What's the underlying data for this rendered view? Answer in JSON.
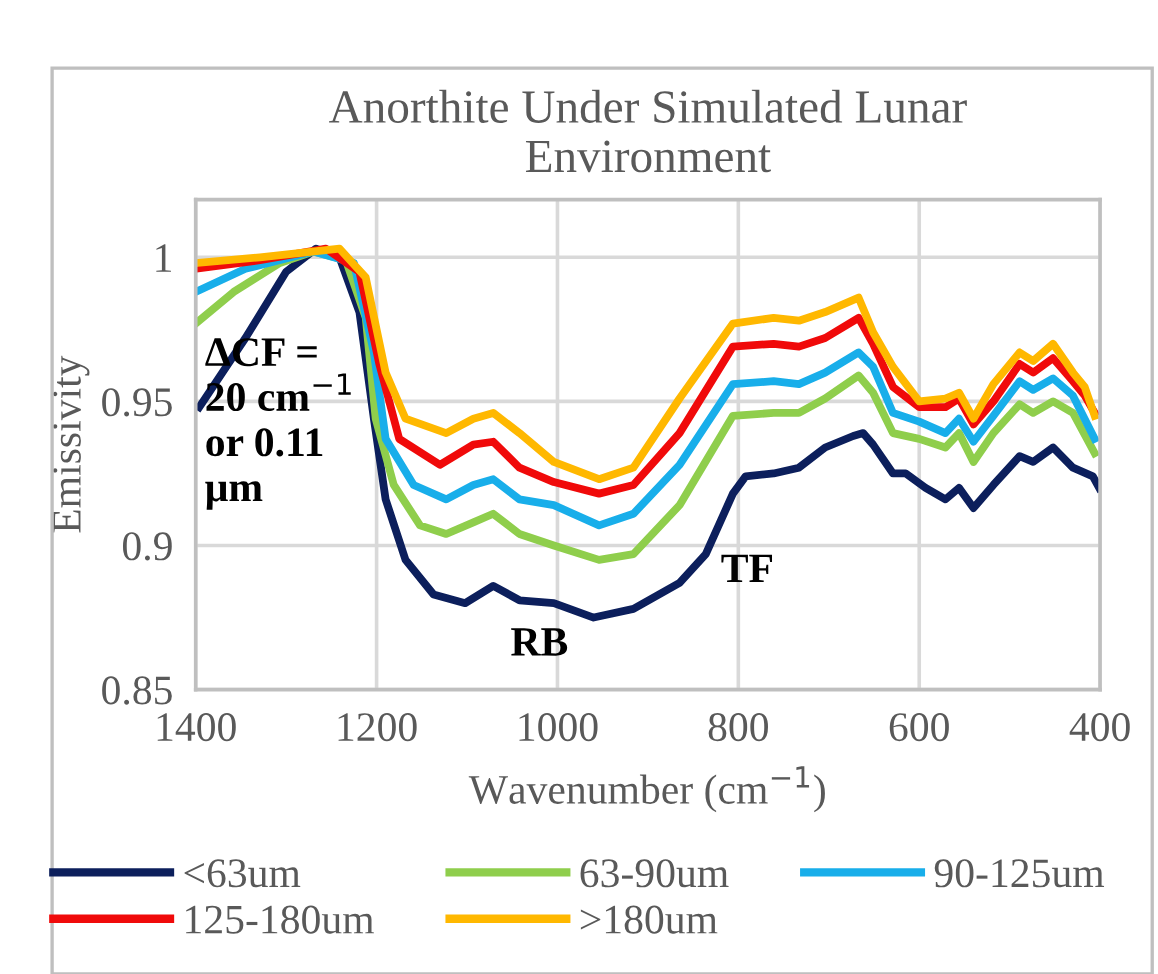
{
  "chart_data": {
    "type": "line",
    "title": "Anorthite Under Simulated Lunar\nEnvironment",
    "xlabel": "Wavenumber (cm$^{−1}$)",
    "ylabel": "Emissivity",
    "xlim": [
      1400,
      400
    ],
    "xticks": [
      1400,
      1200,
      1000,
      800,
      600,
      400
    ],
    "ylim": [
      0.85,
      1.02
    ],
    "yticks": [
      0.85,
      0.9,
      0.95,
      1
    ],
    "grid": true,
    "legend": "bottom",
    "marker": "none",
    "line_style": "solid",
    "annotations": [
      "ΔCF = 20 cm$^{−1}$ or 0.11 μm",
      "RB",
      "TF"
    ],
    "series": [
      {
        "name": "<63um",
        "color": "#0c1f5c",
        "x": [
          1396,
          1345,
          1300,
          1267,
          1241,
          1219,
          1203,
          1190,
          1168,
          1137,
          1102,
          1071,
          1042,
          1004,
          960,
          916,
          865,
          836,
          806,
          792,
          761,
          733,
          704,
          673,
          662,
          651,
          629,
          615,
          593,
          571,
          556,
          540,
          518,
          489,
          474,
          452,
          430,
          408,
          401
        ],
        "values": [
          0.948,
          0.972,
          0.995,
          1.003,
          1.0,
          0.981,
          0.944,
          0.916,
          0.895,
          0.883,
          0.88,
          0.886,
          0.881,
          0.88,
          0.875,
          0.878,
          0.887,
          0.897,
          0.918,
          0.924,
          0.925,
          0.927,
          0.934,
          0.938,
          0.939,
          0.935,
          0.925,
          0.925,
          0.92,
          0.916,
          0.92,
          0.913,
          0.921,
          0.931,
          0.929,
          0.934,
          0.927,
          0.924,
          0.92
        ]
      },
      {
        "name": "63-90um",
        "color": "#8fce4c",
        "x": [
          1400,
          1358,
          1307,
          1270,
          1234,
          1212,
          1201,
          1181,
          1152,
          1123,
          1093,
          1071,
          1042,
          1004,
          954,
          916,
          865,
          806,
          761,
          733,
          704,
          667,
          651,
          629,
          600,
          571,
          556,
          540,
          518,
          489,
          474,
          452,
          430,
          406
        ],
        "values": [
          0.977,
          0.988,
          0.998,
          1.002,
          0.999,
          0.979,
          0.944,
          0.921,
          0.907,
          0.904,
          0.908,
          0.911,
          0.904,
          0.9,
          0.895,
          0.897,
          0.914,
          0.945,
          0.946,
          0.946,
          0.951,
          0.959,
          0.953,
          0.939,
          0.937,
          0.934,
          0.939,
          0.929,
          0.939,
          0.949,
          0.946,
          0.95,
          0.946,
          0.932
        ]
      },
      {
        "name": "90-125um",
        "color": "#18aeea",
        "x": [
          1400,
          1345,
          1270,
          1225,
          1203,
          1190,
          1159,
          1123,
          1093,
          1071,
          1042,
          1004,
          954,
          916,
          865,
          806,
          761,
          733,
          704,
          667,
          651,
          629,
          600,
          571,
          556,
          540,
          518,
          489,
          474,
          452,
          430,
          406
        ],
        "values": [
          0.988,
          0.996,
          1.002,
          0.998,
          0.967,
          0.937,
          0.921,
          0.916,
          0.921,
          0.923,
          0.916,
          0.914,
          0.907,
          0.911,
          0.928,
          0.956,
          0.957,
          0.956,
          0.96,
          0.967,
          0.962,
          0.946,
          0.943,
          0.939,
          0.944,
          0.936,
          0.945,
          0.957,
          0.954,
          0.958,
          0.952,
          0.937
        ]
      },
      {
        "name": "125-180um",
        "color": "#f00a0a",
        "x": [
          1400,
          1329,
          1256,
          1219,
          1197,
          1175,
          1130,
          1093,
          1071,
          1042,
          1004,
          954,
          916,
          865,
          806,
          761,
          733,
          704,
          667,
          651,
          629,
          600,
          571,
          556,
          540,
          518,
          489,
          474,
          452,
          430,
          417,
          406
        ],
        "values": [
          0.996,
          0.999,
          1.003,
          0.995,
          0.963,
          0.937,
          0.928,
          0.935,
          0.936,
          0.927,
          0.922,
          0.918,
          0.921,
          0.939,
          0.969,
          0.97,
          0.969,
          0.972,
          0.979,
          0.97,
          0.955,
          0.948,
          0.948,
          0.951,
          0.942,
          0.95,
          0.963,
          0.96,
          0.965,
          0.957,
          0.952,
          0.946
        ]
      },
      {
        "name": ">180um",
        "color": "#ffb800",
        "x": [
          1400,
          1329,
          1241,
          1212,
          1190,
          1168,
          1123,
          1093,
          1071,
          1042,
          1004,
          954,
          916,
          865,
          806,
          761,
          733,
          704,
          667,
          651,
          629,
          600,
          571,
          556,
          540,
          518,
          489,
          474,
          452,
          430,
          417,
          406
        ],
        "values": [
          0.998,
          1.0,
          1.003,
          0.993,
          0.96,
          0.944,
          0.939,
          0.944,
          0.946,
          0.939,
          0.929,
          0.923,
          0.927,
          0.951,
          0.977,
          0.979,
          0.978,
          0.981,
          0.986,
          0.974,
          0.962,
          0.95,
          0.951,
          0.953,
          0.944,
          0.956,
          0.967,
          0.964,
          0.97,
          0.96,
          0.955,
          0.945
        ]
      }
    ]
  }
}
